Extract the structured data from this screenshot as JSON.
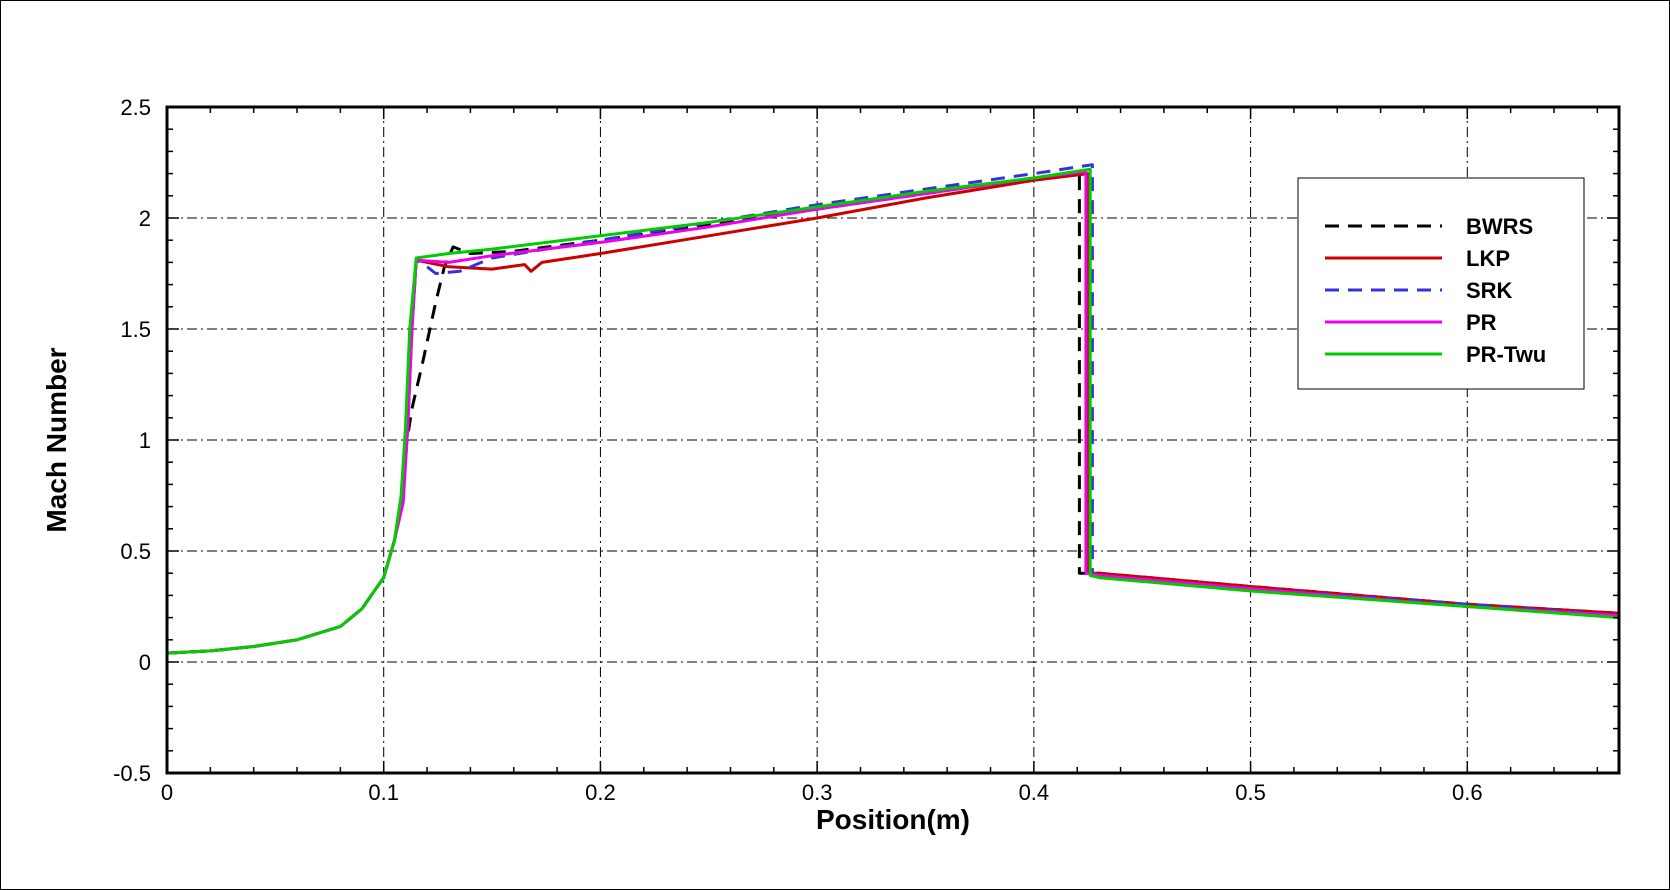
{
  "chart_data": {
    "type": "line",
    "title": "",
    "xlabel": "Position(m)",
    "ylabel": "Mach Number",
    "xlim": [
      0,
      0.67
    ],
    "ylim": [
      -0.5,
      2.5
    ],
    "xticks": [
      0,
      0.1,
      0.2,
      0.3,
      0.4,
      0.5,
      0.6
    ],
    "xtick_labels": [
      "0",
      "0.1",
      "0.2",
      "0.3",
      "0.4",
      "0.5",
      "0.6"
    ],
    "yticks": [
      -0.5,
      0,
      0.5,
      1,
      1.5,
      2,
      2.5
    ],
    "ytick_labels": [
      "-0.5",
      "0",
      "0.5",
      "1",
      "1.5",
      "2",
      "2.5"
    ],
    "grid": true,
    "legend_position": "top-right",
    "series": [
      {
        "name": "BWRS",
        "color": "#000000",
        "dash": "dashed",
        "points": [
          [
            0,
            0.04
          ],
          [
            0.02,
            0.05
          ],
          [
            0.04,
            0.07
          ],
          [
            0.06,
            0.1
          ],
          [
            0.08,
            0.16
          ],
          [
            0.09,
            0.24
          ],
          [
            0.1,
            0.38
          ],
          [
            0.105,
            0.55
          ],
          [
            0.108,
            0.72
          ],
          [
            0.11,
            0.95
          ],
          [
            0.113,
            1.14
          ],
          [
            0.118,
            1.35
          ],
          [
            0.124,
            1.62
          ],
          [
            0.128,
            1.78
          ],
          [
            0.132,
            1.87
          ],
          [
            0.14,
            1.84
          ],
          [
            0.16,
            1.85
          ],
          [
            0.2,
            1.9
          ],
          [
            0.25,
            1.97
          ],
          [
            0.3,
            2.04
          ],
          [
            0.35,
            2.11
          ],
          [
            0.4,
            2.18
          ],
          [
            0.421,
            2.21
          ],
          [
            0.421,
            0.4
          ],
          [
            0.43,
            0.4
          ],
          [
            0.5,
            0.34
          ],
          [
            0.6,
            0.26
          ],
          [
            0.67,
            0.22
          ]
        ]
      },
      {
        "name": "LKP",
        "color": "#cc0000",
        "dash": "solid",
        "points": [
          [
            0,
            0.04
          ],
          [
            0.02,
            0.05
          ],
          [
            0.04,
            0.07
          ],
          [
            0.06,
            0.1
          ],
          [
            0.08,
            0.16
          ],
          [
            0.09,
            0.24
          ],
          [
            0.1,
            0.38
          ],
          [
            0.105,
            0.55
          ],
          [
            0.109,
            0.75
          ],
          [
            0.111,
            1.05
          ],
          [
            0.113,
            1.5
          ],
          [
            0.115,
            1.81
          ],
          [
            0.13,
            1.78
          ],
          [
            0.15,
            1.77
          ],
          [
            0.165,
            1.79
          ],
          [
            0.168,
            1.76
          ],
          [
            0.173,
            1.8
          ],
          [
            0.2,
            1.84
          ],
          [
            0.25,
            1.92
          ],
          [
            0.3,
            2.0
          ],
          [
            0.35,
            2.09
          ],
          [
            0.4,
            2.17
          ],
          [
            0.425,
            2.2
          ],
          [
            0.425,
            0.4
          ],
          [
            0.43,
            0.4
          ],
          [
            0.5,
            0.34
          ],
          [
            0.6,
            0.26
          ],
          [
            0.67,
            0.22
          ]
        ]
      },
      {
        "name": "SRK",
        "color": "#3333dd",
        "dash": "dashed",
        "points": [
          [
            0,
            0.04
          ],
          [
            0.02,
            0.05
          ],
          [
            0.04,
            0.07
          ],
          [
            0.06,
            0.1
          ],
          [
            0.08,
            0.16
          ],
          [
            0.09,
            0.24
          ],
          [
            0.1,
            0.38
          ],
          [
            0.105,
            0.55
          ],
          [
            0.109,
            0.75
          ],
          [
            0.111,
            1.05
          ],
          [
            0.113,
            1.5
          ],
          [
            0.115,
            1.81
          ],
          [
            0.12,
            1.78
          ],
          [
            0.124,
            1.75
          ],
          [
            0.135,
            1.76
          ],
          [
            0.15,
            1.82
          ],
          [
            0.2,
            1.9
          ],
          [
            0.25,
            1.98
          ],
          [
            0.3,
            2.06
          ],
          [
            0.35,
            2.13
          ],
          [
            0.4,
            2.2
          ],
          [
            0.427,
            2.24
          ],
          [
            0.427,
            0.4
          ],
          [
            0.43,
            0.39
          ],
          [
            0.5,
            0.33
          ],
          [
            0.6,
            0.26
          ],
          [
            0.67,
            0.21
          ]
        ]
      },
      {
        "name": "PR",
        "color": "#ee00ee",
        "dash": "solid",
        "points": [
          [
            0,
            0.04
          ],
          [
            0.02,
            0.05
          ],
          [
            0.04,
            0.07
          ],
          [
            0.06,
            0.1
          ],
          [
            0.08,
            0.16
          ],
          [
            0.09,
            0.24
          ],
          [
            0.1,
            0.38
          ],
          [
            0.105,
            0.55
          ],
          [
            0.109,
            0.72
          ],
          [
            0.111,
            1.05
          ],
          [
            0.113,
            1.5
          ],
          [
            0.115,
            1.81
          ],
          [
            0.13,
            1.8
          ],
          [
            0.15,
            1.83
          ],
          [
            0.2,
            1.89
          ],
          [
            0.25,
            1.96
          ],
          [
            0.3,
            2.04
          ],
          [
            0.35,
            2.11
          ],
          [
            0.4,
            2.18
          ],
          [
            0.424,
            2.21
          ],
          [
            0.424,
            0.4
          ],
          [
            0.43,
            0.39
          ],
          [
            0.5,
            0.33
          ],
          [
            0.6,
            0.25
          ],
          [
            0.67,
            0.21
          ]
        ]
      },
      {
        "name": "PR-Twu",
        "color": "#00cc00",
        "dash": "solid",
        "points": [
          [
            0,
            0.04
          ],
          [
            0.02,
            0.05
          ],
          [
            0.04,
            0.07
          ],
          [
            0.06,
            0.1
          ],
          [
            0.08,
            0.16
          ],
          [
            0.09,
            0.24
          ],
          [
            0.1,
            0.38
          ],
          [
            0.105,
            0.55
          ],
          [
            0.108,
            0.75
          ],
          [
            0.11,
            1.05
          ],
          [
            0.112,
            1.5
          ],
          [
            0.115,
            1.82
          ],
          [
            0.13,
            1.84
          ],
          [
            0.15,
            1.86
          ],
          [
            0.2,
            1.92
          ],
          [
            0.25,
            1.98
          ],
          [
            0.3,
            2.05
          ],
          [
            0.35,
            2.12
          ],
          [
            0.4,
            2.18
          ],
          [
            0.426,
            2.22
          ],
          [
            0.426,
            0.39
          ],
          [
            0.43,
            0.38
          ],
          [
            0.5,
            0.32
          ],
          [
            0.6,
            0.25
          ],
          [
            0.67,
            0.2
          ]
        ]
      }
    ]
  }
}
